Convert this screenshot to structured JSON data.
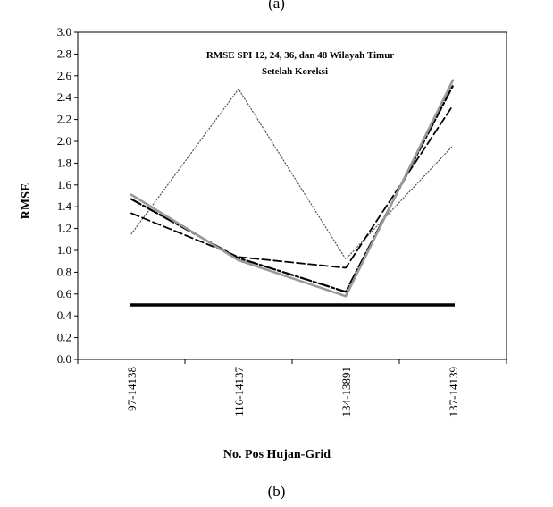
{
  "captions": {
    "top": "(a)",
    "bottom": "(b)"
  },
  "chart_data": {
    "type": "line",
    "title": "RMSE  SPI 12, 24, 36, dan  48 Wilayah Timur",
    "subtitle": "Setelah Koreksi",
    "xlabel": "No. Pos Hujan-Grid",
    "ylabel": "RMSE",
    "categories": [
      "97-14138",
      "116-14137",
      "134-13891",
      "137-14139"
    ],
    "ylim": [
      0,
      3.0
    ],
    "yticks": [
      "0.0",
      "0.2",
      "0.4",
      "0.6",
      "0.8",
      "1.0",
      "1.2",
      "1.4",
      "1.6",
      "1.8",
      "2.0",
      "2.2",
      "2.4",
      "2.6",
      "2.8",
      "3.0"
    ],
    "grid": false,
    "series": [
      {
        "values": [
          1.15,
          2.48,
          0.92,
          1.96
        ],
        "color": "#555555",
        "style": "dotted"
      },
      {
        "values": [
          1.34,
          0.94,
          0.84,
          2.33
        ],
        "color": "#000000",
        "style": "dashed"
      },
      {
        "values": [
          1.47,
          0.93,
          0.62,
          2.51
        ],
        "color": "#000000",
        "style": "dashdot"
      },
      {
        "values": [
          1.51,
          0.91,
          0.58,
          2.56
        ],
        "color": "#999999",
        "style": "solid"
      }
    ],
    "reference_line": {
      "value": 0.5,
      "color": "#000000"
    }
  }
}
